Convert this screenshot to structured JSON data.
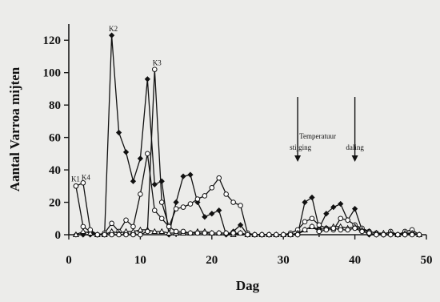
{
  "chart_data": {
    "type": "line",
    "xlabel": "Dag",
    "ylabel": "Aantal Varroa mijten",
    "xlim": [
      0,
      50
    ],
    "ylim": [
      0,
      130
    ],
    "xticks": [
      0,
      10,
      20,
      30,
      40,
      50
    ],
    "yticks": [
      0,
      20,
      40,
      60,
      80,
      100,
      120
    ],
    "grid": false,
    "legend": "none",
    "series": [
      {
        "marker": "filled-diamond",
        "x": [
          1,
          2,
          3,
          4,
          5,
          6,
          7,
          8,
          9,
          10,
          11,
          12,
          13,
          14,
          15,
          16,
          17,
          18,
          19,
          20,
          21,
          22,
          23,
          24,
          25,
          26,
          27,
          28,
          29,
          30,
          31,
          32,
          33,
          34,
          35,
          36,
          37,
          38,
          39,
          40,
          41,
          42,
          43,
          44,
          45,
          46,
          47,
          48,
          49
        ],
        "y": [
          0,
          0,
          0,
          0,
          0,
          123,
          63,
          51,
          33,
          47,
          96,
          31,
          33,
          0,
          20,
          36,
          37,
          20,
          11,
          13,
          15,
          0,
          2,
          6,
          0,
          0,
          0,
          0,
          0,
          0,
          0,
          0,
          20,
          23,
          4,
          13,
          17,
          19,
          9,
          16,
          3,
          0,
          0,
          0,
          0,
          0,
          0,
          1,
          0
        ]
      },
      {
        "marker": "open-circle",
        "x": [
          1,
          2,
          3,
          4,
          5,
          6,
          7,
          8,
          9,
          10,
          11,
          12,
          13,
          14,
          15,
          16,
          17,
          18,
          19,
          20,
          21,
          22,
          23,
          24,
          25,
          26,
          27,
          28,
          29,
          30,
          31,
          32,
          33,
          34,
          35,
          36,
          37,
          38,
          39,
          40,
          41,
          42,
          43,
          44,
          45,
          46,
          47,
          48,
          49
        ],
        "y": [
          30,
          5,
          2,
          0,
          1,
          7,
          2,
          9,
          5,
          25,
          50,
          15,
          10,
          5,
          16,
          17,
          19,
          22,
          24,
          29,
          35,
          25,
          20,
          18,
          1,
          0,
          0,
          0,
          0,
          0,
          1,
          3,
          8,
          10,
          6,
          4,
          3,
          10,
          9,
          6,
          4,
          2,
          1,
          0,
          2,
          0,
          2,
          3,
          0
        ]
      },
      {
        "marker": "open-triangle",
        "x": [
          1,
          2,
          3,
          4,
          5,
          6,
          7,
          8,
          9,
          10,
          11,
          12,
          13,
          14,
          15,
          16,
          17,
          18,
          19,
          20,
          21,
          22,
          23,
          24,
          25,
          26,
          27,
          28,
          29,
          30,
          31,
          32,
          33,
          34,
          35,
          36,
          37,
          38,
          39,
          40,
          41,
          42,
          43,
          44,
          45,
          46,
          47,
          48,
          49
        ],
        "y": [
          0,
          2,
          1,
          0,
          0,
          2,
          1,
          2,
          2,
          3,
          3,
          2,
          2,
          1,
          1,
          1,
          1,
          2,
          2,
          1,
          1,
          1,
          0,
          1,
          0,
          0,
          0,
          0,
          0,
          0,
          0,
          1,
          3,
          5,
          3,
          4,
          5,
          5,
          4,
          5,
          3,
          2,
          1,
          1,
          1,
          0,
          1,
          1,
          0
        ]
      },
      {
        "marker": "open-circle",
        "x": [
          1,
          2,
          3,
          4,
          5,
          6,
          7,
          8,
          9,
          10,
          11,
          12,
          13,
          14,
          15,
          16,
          17,
          18,
          19,
          20,
          21,
          22,
          23,
          24,
          25,
          26,
          27,
          28,
          29,
          30,
          31,
          32,
          33,
          34,
          35,
          36,
          37,
          38,
          39,
          40,
          41,
          42,
          43,
          44,
          45,
          46,
          47,
          48,
          49
        ],
        "y": [
          30,
          32,
          3,
          0,
          0,
          0,
          0,
          0,
          0,
          0,
          2,
          102,
          20,
          5,
          2,
          2,
          1,
          1,
          1,
          1,
          1,
          1,
          1,
          1,
          0,
          0,
          0,
          0,
          0,
          0,
          0,
          0,
          3,
          5,
          2,
          3,
          4,
          3,
          3,
          4,
          2,
          1,
          0,
          0,
          0,
          0,
          0,
          0,
          0
        ]
      }
    ],
    "annotations": [
      {
        "text": "K1",
        "x": 1,
        "y": 30
      },
      {
        "text": "K4",
        "x": 2,
        "y": 32
      },
      {
        "text": "K2",
        "x": 6,
        "y": 123
      },
      {
        "text": "K3",
        "x": 12,
        "y": 102
      },
      {
        "text": "Temperatuur",
        "x": 35,
        "y": 0
      },
      {
        "text": "stijging",
        "x": 32,
        "y": 0
      },
      {
        "text": "daling",
        "x": 40,
        "y": 0
      }
    ],
    "arrows": [
      {
        "x": 32,
        "from_y": 85,
        "to_y": 45
      },
      {
        "x": 40,
        "from_y": 85,
        "to_y": 45
      }
    ]
  }
}
